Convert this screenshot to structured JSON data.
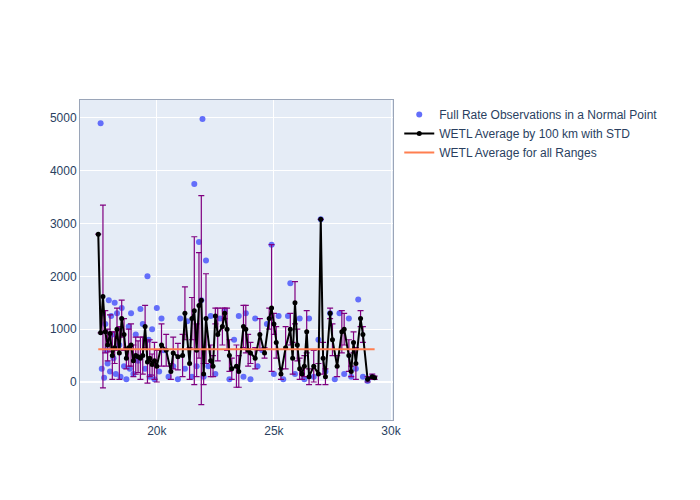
{
  "chart_data": {
    "type": "scatter",
    "grid": true,
    "legend": "top right",
    "xlim": [
      16720,
      30085
    ],
    "ylim": [
      -720,
      5340
    ],
    "xticks": [
      {
        "value": 20000,
        "label": "20k"
      },
      {
        "value": 25000,
        "label": "25k"
      },
      {
        "value": 30000,
        "label": "30k"
      }
    ],
    "yticks": [
      0,
      1000,
      2000,
      3000,
      4000,
      5000
    ],
    "series": [
      {
        "name": "Full Rate Observations in a Normal Point",
        "type": "scatter",
        "marker": "circle",
        "color": "#636efa",
        "x": [
          17600,
          17650,
          17700,
          17750,
          17800,
          17850,
          17900,
          17950,
          18000,
          18050,
          18100,
          18150,
          18200,
          18250,
          18300,
          18400,
          18450,
          18500,
          18600,
          18700,
          18800,
          18850,
          18900,
          19000,
          19100,
          19200,
          19300,
          19400,
          19500,
          19600,
          19650,
          19700,
          19800,
          19900,
          20000,
          20100,
          20200,
          20300,
          20500,
          20700,
          20900,
          21000,
          21200,
          21300,
          21500,
          21600,
          21700,
          21800,
          21900,
          21950,
          22000,
          22100,
          22200,
          22300,
          22500,
          22700,
          22900,
          23100,
          23300,
          23500,
          23700,
          23800,
          24000,
          24200,
          24300,
          24500,
          24700,
          24900,
          25000,
          25200,
          25400,
          25600,
          25700,
          25900,
          26100,
          26300,
          26500,
          26700,
          26900,
          27000,
          27200,
          27400,
          27600,
          27800,
          28000,
          28200,
          28300,
          28500,
          28600,
          28800,
          29000,
          29200
        ],
        "values": [
          4900,
          250,
          1300,
          80,
          1100,
          600,
          350,
          1550,
          200,
          1250,
          900,
          450,
          1500,
          150,
          1300,
          700,
          100,
          1400,
          300,
          50,
          1050,
          250,
          1300,
          150,
          900,
          400,
          1380,
          1100,
          250,
          2000,
          800,
          100,
          1000,
          50,
          1400,
          200,
          1200,
          600,
          100,
          300,
          50,
          1200,
          250,
          1150,
          100,
          3750,
          300,
          2650,
          1550,
          4980,
          100,
          2300,
          300,
          1250,
          150,
          1200,
          1350,
          50,
          800,
          1250,
          100,
          1300,
          50,
          1200,
          300,
          600,
          1100,
          2600,
          150,
          1250,
          50,
          1250,
          1870,
          150,
          1200,
          50,
          1200,
          100,
          800,
          3080,
          200,
          1300,
          50,
          1300,
          150,
          1200,
          100,
          250,
          1560,
          100,
          20,
          100
        ]
      },
      {
        "name": "WETL Average by 100 km with STD",
        "type": "line",
        "marker": "circle",
        "color": "#000000",
        "error_color": "#800080",
        "x": [
          17500,
          17600,
          17700,
          17800,
          17900,
          18000,
          18100,
          18200,
          18300,
          18400,
          18500,
          18600,
          18700,
          18800,
          18900,
          19000,
          19100,
          19200,
          19300,
          19400,
          19500,
          19600,
          19700,
          19800,
          19900,
          20000,
          20200,
          20400,
          20600,
          20700,
          20900,
          21100,
          21200,
          21400,
          21500,
          21600,
          21700,
          21800,
          21900,
          22000,
          22100,
          22300,
          22400,
          22500,
          22600,
          22800,
          22900,
          23000,
          23100,
          23200,
          23400,
          23500,
          23700,
          23800,
          23900,
          24000,
          24200,
          24400,
          24600,
          24800,
          24900,
          25000,
          25100,
          25300,
          25500,
          25700,
          25800,
          25900,
          26000,
          26100,
          26200,
          26300,
          26400,
          26500,
          26700,
          26900,
          27000,
          27100,
          27200,
          27400,
          27500,
          27700,
          27900,
          28000,
          28200,
          28300,
          28400,
          28500,
          28700,
          28800,
          29000,
          29200,
          29300
        ],
        "values": [
          2800,
          930,
          1620,
          950,
          700,
          920,
          500,
          650,
          1000,
          550,
          1200,
          900,
          450,
          650,
          700,
          400,
          500,
          480,
          450,
          500,
          1050,
          380,
          450,
          330,
          400,
          300,
          700,
          600,
          200,
          550,
          480,
          500,
          1300,
          350,
          1200,
          1350,
          600,
          1450,
          1550,
          150,
          1200,
          400,
          300,
          1250,
          900,
          1050,
          1300,
          1000,
          500,
          250,
          300,
          200,
          1050,
          1000,
          600,
          550,
          450,
          900,
          550,
          1200,
          1400,
          1100,
          750,
          150,
          650,
          1000,
          450,
          1500,
          700,
          250,
          150,
          300,
          950,
          100,
          300,
          150,
          3080,
          450,
          100,
          1300,
          800,
          300,
          950,
          1000,
          500,
          200,
          750,
          350,
          1200,
          900,
          50,
          100,
          80
        ],
        "error": [
          0,
          0,
          1730,
          400,
          300,
          350,
          450,
          300,
          400,
          500,
          350,
          300,
          200,
          350,
          400,
          300,
          350,
          300,
          400,
          350,
          400,
          400,
          350,
          200,
          350,
          300,
          400,
          300,
          150,
          300,
          250,
          400,
          500,
          300,
          400,
          1400,
          500,
          1000,
          1980,
          200,
          850,
          300,
          200,
          150,
          500,
          350,
          100,
          400,
          300,
          200,
          400,
          300,
          400,
          450,
          300,
          200,
          200,
          300,
          100,
          200,
          1200,
          200,
          300,
          100,
          400,
          300,
          300,
          400,
          300,
          200,
          100,
          200,
          400,
          150,
          300,
          200,
          0,
          300,
          150,
          100,
          300,
          200,
          400,
          300,
          300,
          100,
          200,
          300,
          150,
          150,
          50,
          50,
          30
        ]
      },
      {
        "name": "WETL Average for all Ranges",
        "type": "line",
        "marker": "none",
        "color": "#ff7f50",
        "x": [
          17500,
          29300
        ],
        "values": [
          620,
          620
        ]
      }
    ]
  }
}
